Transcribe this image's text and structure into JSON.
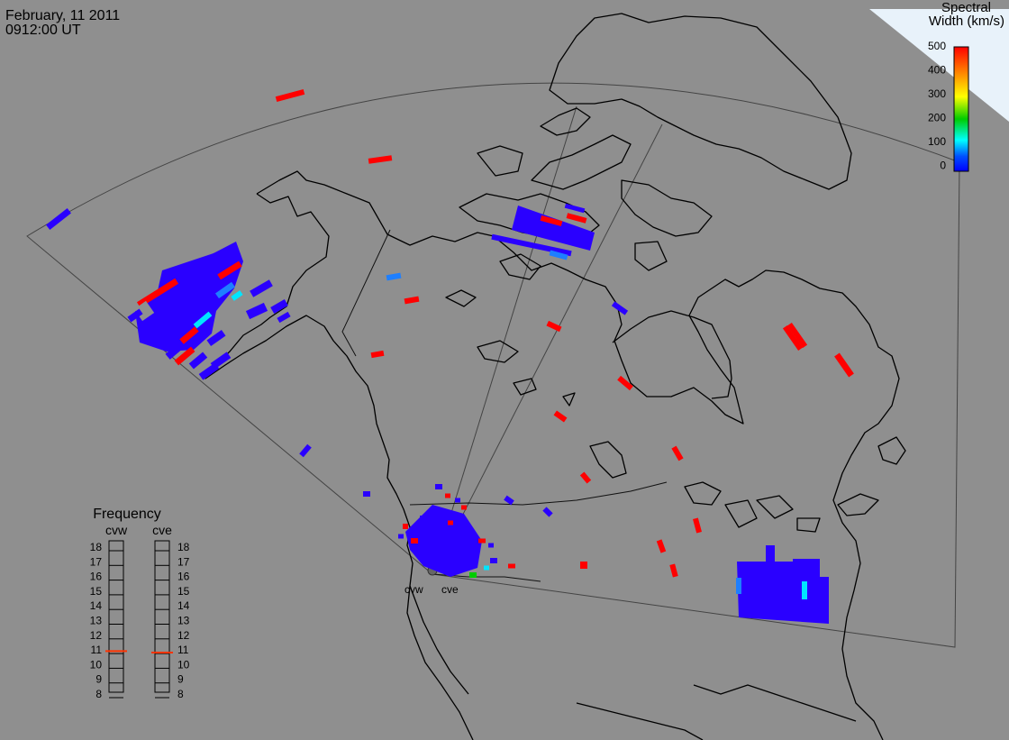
{
  "header": {
    "date": "February, 11 2011",
    "time": "0912:00 UT"
  },
  "colorbar": {
    "title_line1": "Spectral",
    "title_line2": "Width (km/s)",
    "ticks": [
      "500",
      "400",
      "300",
      "200",
      "100",
      "0"
    ],
    "colors": [
      "#ff0000",
      "#ff8000",
      "#ffff00",
      "#00cc00",
      "#00ffff",
      "#0050ff",
      "#0000ff"
    ]
  },
  "radars": {
    "west": "cvw",
    "east": "cve"
  },
  "frequency": {
    "title": "Frequency",
    "left_label": "cvw",
    "right_label": "cve",
    "scale": [
      "18",
      "17",
      "16",
      "15",
      "14",
      "13",
      "12",
      "11",
      "10",
      "9",
      "8"
    ],
    "cvw_mhz": 10.8,
    "cve_mhz": 10.7,
    "marker_color": "#ff3300"
  },
  "colors": {
    "background": "#8f8f8f",
    "echo_blue": "#2a00ff",
    "echo_red": "#ff0000",
    "echo_cyan": "#00e5ff",
    "echo_midblue": "#1e7fff"
  }
}
